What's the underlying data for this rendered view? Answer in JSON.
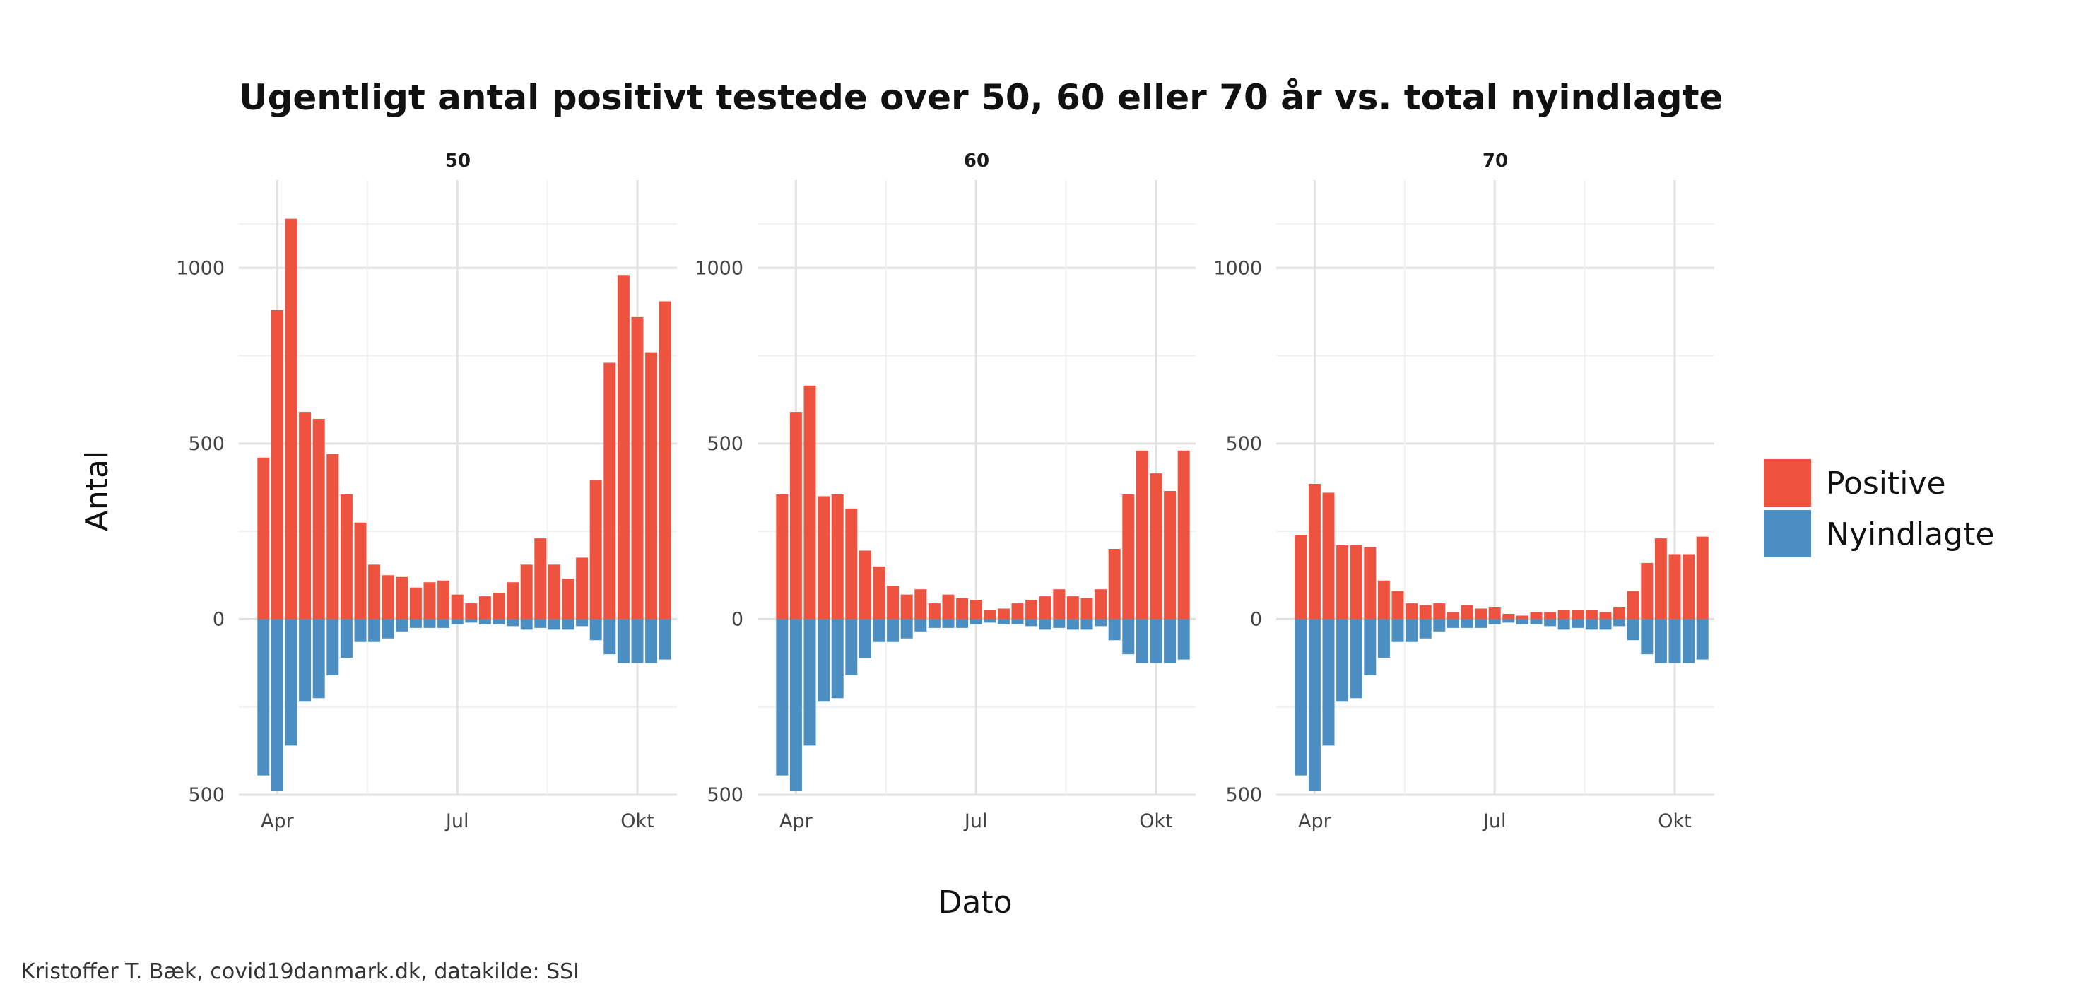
{
  "chart_data": {
    "type": "bar",
    "title": "Ugentligt antal positivt testede over 50, 60 eller 70 år vs. total nyindlagte",
    "xlabel": "Dato",
    "ylabel": "Antal",
    "caption": "Kristoffer T. Bæk, covid19danmark.dk, datakilde: SSI",
    "ylim": [
      -500,
      1250
    ],
    "y_ticks": [
      -500,
      0,
      500,
      1000
    ],
    "y_tick_labels": [
      "500",
      "0",
      "500",
      "1000"
    ],
    "x_ticks": [
      "Apr",
      "Jul",
      "Okt"
    ],
    "x_tick_week_index": [
      1,
      14,
      27
    ],
    "grid": true,
    "legend_position": "right",
    "legend": [
      {
        "name": "Positive",
        "color": "#EE5340"
      },
      {
        "name": "Nyindlagte",
        "color": "#4A8EC2"
      }
    ],
    "facets": [
      {
        "label": "50",
        "positive": [
          460,
          880,
          1140,
          590,
          570,
          470,
          355,
          275,
          155,
          125,
          120,
          90,
          105,
          110,
          70,
          45,
          65,
          75,
          105,
          155,
          230,
          155,
          115,
          175,
          395,
          730,
          980,
          860,
          760,
          905
        ],
        "nyindlagte": [
          -445,
          -490,
          -360,
          -235,
          -225,
          -160,
          -110,
          -65,
          -65,
          -55,
          -35,
          -25,
          -25,
          -25,
          -15,
          -10,
          -15,
          -15,
          -20,
          -30,
          -25,
          -30,
          -30,
          -20,
          -60,
          -100,
          -125,
          -125,
          -125,
          -115
        ]
      },
      {
        "label": "60",
        "positive": [
          355,
          590,
          665,
          350,
          355,
          315,
          195,
          150,
          95,
          70,
          85,
          45,
          70,
          60,
          55,
          25,
          30,
          45,
          55,
          65,
          85,
          65,
          60,
          85,
          200,
          355,
          480,
          415,
          365,
          480
        ],
        "nyindlagte": [
          -445,
          -490,
          -360,
          -235,
          -225,
          -160,
          -110,
          -65,
          -65,
          -55,
          -35,
          -25,
          -25,
          -25,
          -15,
          -10,
          -15,
          -15,
          -20,
          -30,
          -25,
          -30,
          -30,
          -20,
          -60,
          -100,
          -125,
          -125,
          -125,
          -115
        ]
      },
      {
        "label": "70",
        "positive": [
          240,
          385,
          360,
          210,
          210,
          205,
          110,
          80,
          45,
          40,
          45,
          20,
          40,
          30,
          35,
          15,
          10,
          20,
          20,
          25,
          25,
          25,
          20,
          35,
          80,
          160,
          230,
          185,
          185,
          235
        ],
        "nyindlagte": [
          -445,
          -490,
          -360,
          -235,
          -225,
          -160,
          -110,
          -65,
          -65,
          -55,
          -35,
          -25,
          -25,
          -25,
          -15,
          -10,
          -15,
          -15,
          -20,
          -30,
          -25,
          -30,
          -30,
          -20,
          -60,
          -100,
          -125,
          -125,
          -125,
          -115
        ]
      }
    ]
  }
}
